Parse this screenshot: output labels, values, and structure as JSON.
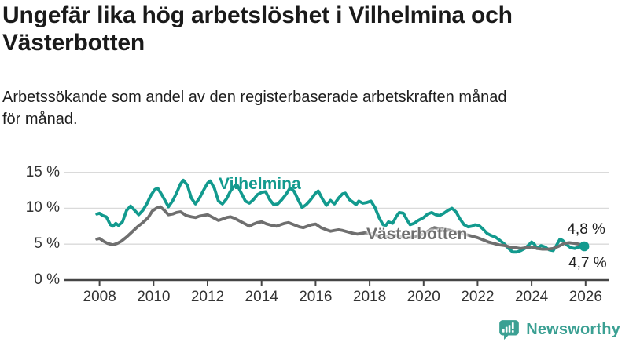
{
  "header": {
    "title": "Ungefär lika hög arbetslöshet i Vilhelmina och Västerbotten",
    "subtitle": "Arbetssökande som andel av den registerbaserade arbetskraften månad för månad."
  },
  "footer": {
    "brand": "Newsworthy"
  },
  "colors": {
    "background": "#ffffff",
    "title": "#1a1a1a",
    "axis": "#454545",
    "tick_label": "#333333",
    "grid": "#dadada",
    "value_label": "#222222",
    "logo": "#3ba093"
  },
  "chart_data": {
    "type": "line",
    "unit": "%",
    "grid": true,
    "legend": "inline-labels",
    "xlim": [
      2006.7,
      2026.85
    ],
    "ylim": [
      0,
      16.6
    ],
    "y_ticks": [
      {
        "value": 0,
        "label": "0 %"
      },
      {
        "value": 5,
        "label": "5 %"
      },
      {
        "value": 10,
        "label": "10 %"
      },
      {
        "value": 15,
        "label": "15 %"
      }
    ],
    "x_ticks": [
      {
        "value": 2008,
        "label": "2008"
      },
      {
        "value": 2010,
        "label": "2010"
      },
      {
        "value": 2012,
        "label": "2012"
      },
      {
        "value": 2014,
        "label": "2014"
      },
      {
        "value": 2016,
        "label": "2016"
      },
      {
        "value": 2018,
        "label": "2018"
      },
      {
        "value": 2020,
        "label": "2020"
      },
      {
        "value": 2022,
        "label": "2022"
      },
      {
        "value": 2024,
        "label": "2024"
      },
      {
        "value": 2026,
        "label": "2026"
      }
    ],
    "series": [
      {
        "name": "Vilhelmina",
        "color": "#129a8e",
        "end_label": "4,7 %",
        "end_label_position": "below",
        "end_dot": true,
        "points": [
          [
            2007.9,
            9.2
          ],
          [
            2008.0,
            9.3
          ],
          [
            2008.1,
            9.0
          ],
          [
            2008.25,
            8.8
          ],
          [
            2008.4,
            7.7
          ],
          [
            2008.5,
            7.5
          ],
          [
            2008.6,
            7.9
          ],
          [
            2008.7,
            7.6
          ],
          [
            2008.85,
            8.1
          ],
          [
            2009.0,
            9.7
          ],
          [
            2009.15,
            10.3
          ],
          [
            2009.3,
            9.7
          ],
          [
            2009.45,
            9.1
          ],
          [
            2009.6,
            9.7
          ],
          [
            2009.75,
            10.6
          ],
          [
            2009.9,
            11.8
          ],
          [
            2010.05,
            12.6
          ],
          [
            2010.15,
            12.8
          ],
          [
            2010.3,
            11.9
          ],
          [
            2010.45,
            10.9
          ],
          [
            2010.55,
            10.2
          ],
          [
            2010.7,
            11.0
          ],
          [
            2010.85,
            12.1
          ],
          [
            2011.0,
            13.4
          ],
          [
            2011.1,
            13.9
          ],
          [
            2011.25,
            13.2
          ],
          [
            2011.4,
            11.4
          ],
          [
            2011.55,
            10.6
          ],
          [
            2011.7,
            11.4
          ],
          [
            2011.85,
            12.5
          ],
          [
            2012.0,
            13.5
          ],
          [
            2012.1,
            13.8
          ],
          [
            2012.25,
            12.8
          ],
          [
            2012.4,
            11.0
          ],
          [
            2012.55,
            10.6
          ],
          [
            2012.7,
            11.3
          ],
          [
            2012.85,
            12.4
          ],
          [
            2013.0,
            13.1
          ],
          [
            2013.1,
            13.2
          ],
          [
            2013.25,
            12.1
          ],
          [
            2013.4,
            11.0
          ],
          [
            2013.55,
            10.7
          ],
          [
            2013.7,
            11.2
          ],
          [
            2013.85,
            11.9
          ],
          [
            2014.0,
            12.2
          ],
          [
            2014.15,
            12.3
          ],
          [
            2014.3,
            11.2
          ],
          [
            2014.45,
            10.5
          ],
          [
            2014.6,
            10.6
          ],
          [
            2014.75,
            11.2
          ],
          [
            2014.9,
            11.9
          ],
          [
            2015.05,
            12.8
          ],
          [
            2015.2,
            12.4
          ],
          [
            2015.35,
            11.2
          ],
          [
            2015.5,
            10.1
          ],
          [
            2015.65,
            10.5
          ],
          [
            2015.8,
            11.1
          ],
          [
            2016.0,
            12.1
          ],
          [
            2016.1,
            12.4
          ],
          [
            2016.25,
            11.3
          ],
          [
            2016.4,
            10.4
          ],
          [
            2016.55,
            11.1
          ],
          [
            2016.7,
            10.6
          ],
          [
            2016.85,
            11.4
          ],
          [
            2017.0,
            12.0
          ],
          [
            2017.1,
            12.1
          ],
          [
            2017.25,
            11.2
          ],
          [
            2017.4,
            10.8
          ],
          [
            2017.5,
            10.5
          ],
          [
            2017.6,
            11.0
          ],
          [
            2017.75,
            10.7
          ],
          [
            2017.9,
            10.8
          ],
          [
            2018.05,
            11.0
          ],
          [
            2018.2,
            10.1
          ],
          [
            2018.35,
            8.7
          ],
          [
            2018.5,
            7.7
          ],
          [
            2018.6,
            7.6
          ],
          [
            2018.7,
            8.1
          ],
          [
            2018.85,
            7.9
          ],
          [
            2019.0,
            8.9
          ],
          [
            2019.1,
            9.4
          ],
          [
            2019.25,
            9.3
          ],
          [
            2019.4,
            8.3
          ],
          [
            2019.5,
            7.7
          ],
          [
            2019.65,
            7.9
          ],
          [
            2019.8,
            8.3
          ],
          [
            2020.0,
            8.7
          ],
          [
            2020.15,
            9.2
          ],
          [
            2020.3,
            9.4
          ],
          [
            2020.45,
            9.1
          ],
          [
            2020.6,
            9.0
          ],
          [
            2020.75,
            9.3
          ],
          [
            2020.9,
            9.7
          ],
          [
            2021.05,
            10.0
          ],
          [
            2021.2,
            9.5
          ],
          [
            2021.35,
            8.5
          ],
          [
            2021.5,
            7.7
          ],
          [
            2021.65,
            7.4
          ],
          [
            2021.8,
            7.5
          ],
          [
            2021.9,
            7.7
          ],
          [
            2022.05,
            7.6
          ],
          [
            2022.2,
            7.1
          ],
          [
            2022.35,
            6.5
          ],
          [
            2022.5,
            6.2
          ],
          [
            2022.65,
            6.0
          ],
          [
            2022.8,
            5.6
          ],
          [
            2023.0,
            5.0
          ],
          [
            2023.15,
            4.4
          ],
          [
            2023.3,
            3.9
          ],
          [
            2023.45,
            3.9
          ],
          [
            2023.6,
            4.1
          ],
          [
            2023.75,
            4.4
          ],
          [
            2023.9,
            4.9
          ],
          [
            2024.0,
            5.3
          ],
          [
            2024.1,
            5.0
          ],
          [
            2024.2,
            4.4
          ],
          [
            2024.35,
            4.8
          ],
          [
            2024.5,
            4.6
          ],
          [
            2024.65,
            4.2
          ],
          [
            2024.8,
            4.1
          ],
          [
            2024.9,
            4.7
          ],
          [
            2025.05,
            5.7
          ],
          [
            2025.15,
            5.5
          ],
          [
            2025.3,
            4.9
          ],
          [
            2025.45,
            4.5
          ],
          [
            2025.6,
            4.4
          ],
          [
            2025.75,
            4.6
          ],
          [
            2025.95,
            4.7
          ]
        ]
      },
      {
        "name": "Västerbotten",
        "color": "#6f6f6f",
        "end_label": "4,8 %",
        "end_label_position": "above",
        "end_dot": false,
        "points": [
          [
            2007.9,
            5.7
          ],
          [
            2008.0,
            5.8
          ],
          [
            2008.15,
            5.4
          ],
          [
            2008.3,
            5.1
          ],
          [
            2008.5,
            4.9
          ],
          [
            2008.65,
            5.1
          ],
          [
            2008.8,
            5.4
          ],
          [
            2009.0,
            6.0
          ],
          [
            2009.2,
            6.7
          ],
          [
            2009.4,
            7.4
          ],
          [
            2009.6,
            8.0
          ],
          [
            2009.8,
            8.7
          ],
          [
            2009.95,
            9.6
          ],
          [
            2010.1,
            10.0
          ],
          [
            2010.25,
            10.2
          ],
          [
            2010.4,
            9.7
          ],
          [
            2010.55,
            9.1
          ],
          [
            2010.7,
            9.2
          ],
          [
            2010.85,
            9.4
          ],
          [
            2011.0,
            9.5
          ],
          [
            2011.2,
            9.0
          ],
          [
            2011.4,
            8.8
          ],
          [
            2011.55,
            8.7
          ],
          [
            2011.7,
            8.9
          ],
          [
            2011.85,
            9.0
          ],
          [
            2012.0,
            9.1
          ],
          [
            2012.2,
            8.7
          ],
          [
            2012.4,
            8.3
          ],
          [
            2012.55,
            8.5
          ],
          [
            2012.7,
            8.7
          ],
          [
            2012.85,
            8.8
          ],
          [
            2013.0,
            8.6
          ],
          [
            2013.2,
            8.2
          ],
          [
            2013.4,
            7.8
          ],
          [
            2013.55,
            7.5
          ],
          [
            2013.7,
            7.8
          ],
          [
            2013.85,
            8.0
          ],
          [
            2014.0,
            8.1
          ],
          [
            2014.2,
            7.8
          ],
          [
            2014.4,
            7.6
          ],
          [
            2014.55,
            7.5
          ],
          [
            2014.7,
            7.7
          ],
          [
            2014.85,
            7.9
          ],
          [
            2015.0,
            8.0
          ],
          [
            2015.2,
            7.7
          ],
          [
            2015.4,
            7.4
          ],
          [
            2015.55,
            7.3
          ],
          [
            2015.7,
            7.5
          ],
          [
            2015.85,
            7.7
          ],
          [
            2016.0,
            7.8
          ],
          [
            2016.2,
            7.3
          ],
          [
            2016.4,
            7.0
          ],
          [
            2016.55,
            6.8
          ],
          [
            2016.7,
            6.9
          ],
          [
            2016.85,
            7.0
          ],
          [
            2017.0,
            6.9
          ],
          [
            2017.2,
            6.7
          ],
          [
            2017.4,
            6.5
          ],
          [
            2017.55,
            6.4
          ],
          [
            2017.7,
            6.5
          ],
          [
            2017.85,
            6.6
          ],
          [
            2018.0,
            6.5
          ],
          [
            2018.2,
            6.3
          ],
          [
            2018.4,
            6.1
          ],
          [
            2018.55,
            6.0
          ],
          [
            2018.7,
            6.1
          ],
          [
            2018.85,
            6.2
          ],
          [
            2019.0,
            6.2
          ],
          [
            2019.2,
            6.0
          ],
          [
            2019.4,
            5.9
          ],
          [
            2019.6,
            6.0
          ],
          [
            2019.8,
            6.2
          ],
          [
            2020.0,
            6.4
          ],
          [
            2020.2,
            6.9
          ],
          [
            2020.4,
            7.3
          ],
          [
            2020.55,
            7.2
          ],
          [
            2020.7,
            7.1
          ],
          [
            2020.85,
            7.0
          ],
          [
            2021.0,
            6.9
          ],
          [
            2021.2,
            6.7
          ],
          [
            2021.4,
            6.5
          ],
          [
            2021.6,
            6.3
          ],
          [
            2021.8,
            6.1
          ],
          [
            2022.0,
            5.9
          ],
          [
            2022.2,
            5.6
          ],
          [
            2022.4,
            5.3
          ],
          [
            2022.6,
            5.1
          ],
          [
            2022.8,
            4.9
          ],
          [
            2023.0,
            4.8
          ],
          [
            2023.2,
            4.6
          ],
          [
            2023.4,
            4.5
          ],
          [
            2023.6,
            4.4
          ],
          [
            2023.8,
            4.5
          ],
          [
            2024.0,
            4.6
          ],
          [
            2024.2,
            4.4
          ],
          [
            2024.4,
            4.3
          ],
          [
            2024.6,
            4.3
          ],
          [
            2024.8,
            4.4
          ],
          [
            2025.0,
            4.7
          ],
          [
            2025.2,
            5.1
          ],
          [
            2025.4,
            5.2
          ],
          [
            2025.6,
            5.1
          ],
          [
            2025.75,
            5.0
          ],
          [
            2025.9,
            4.8
          ]
        ]
      }
    ]
  }
}
